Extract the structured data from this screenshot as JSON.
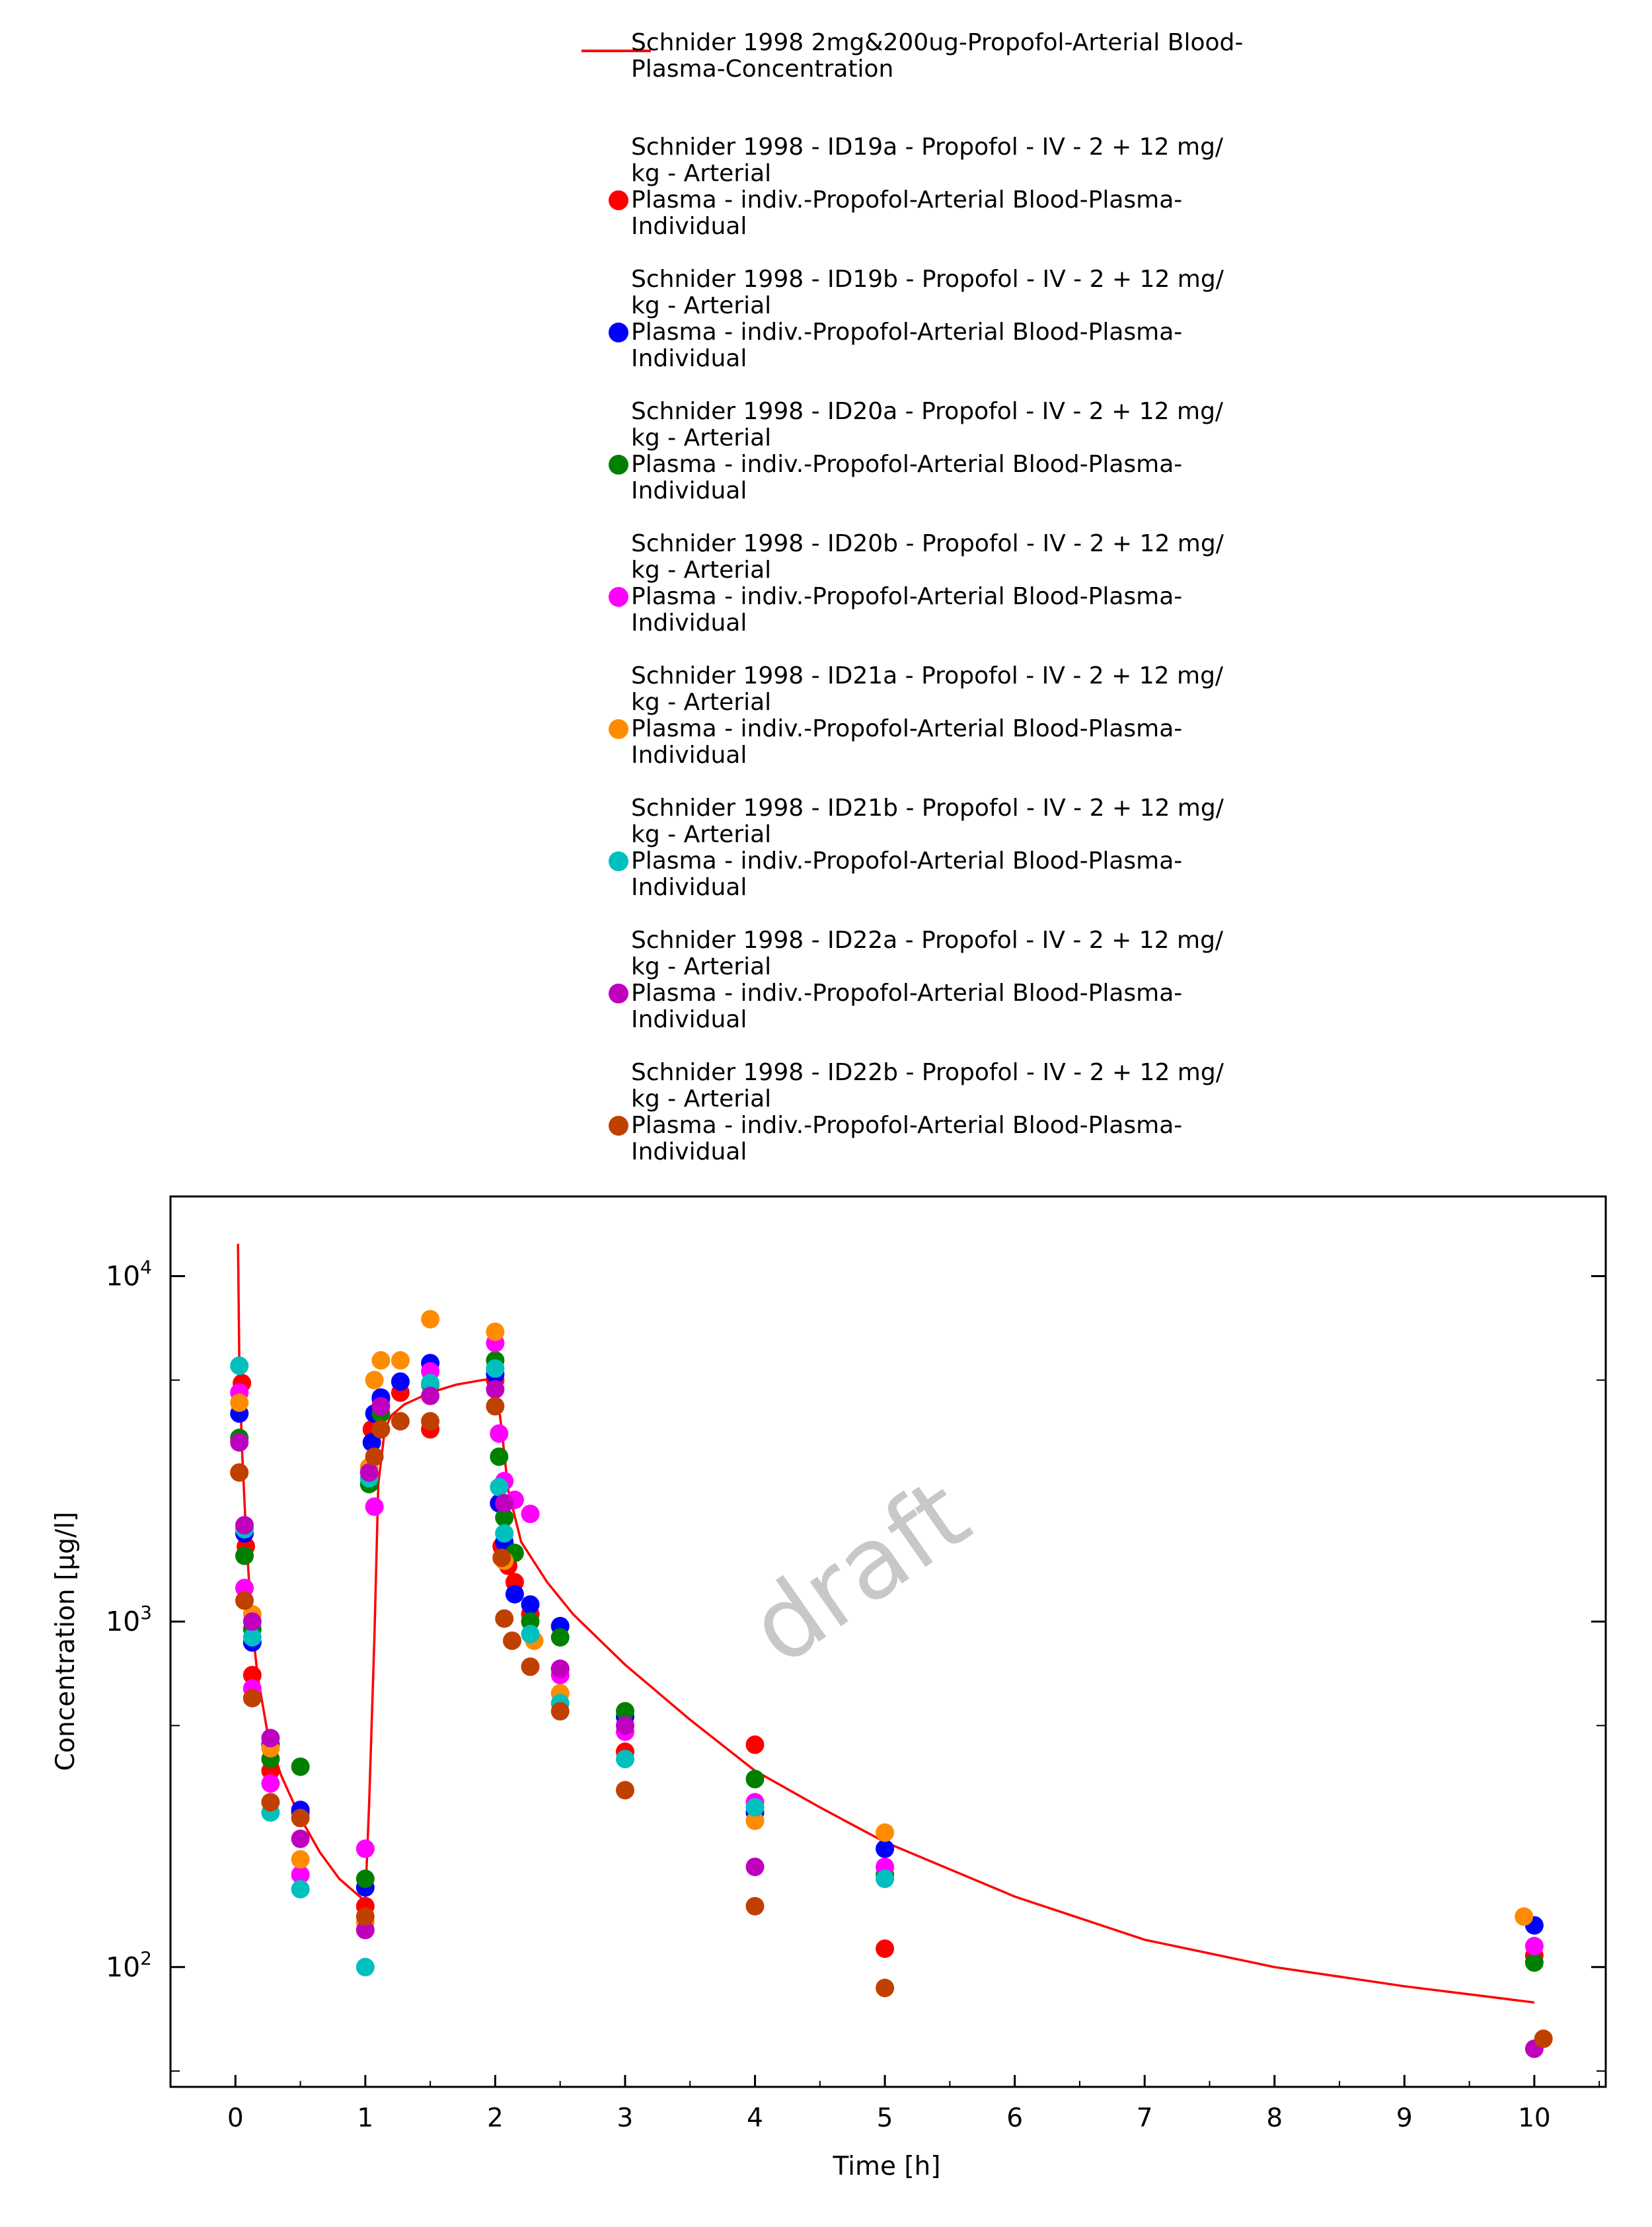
{
  "chart_data": {
    "type": "scatter",
    "xlabel": "Time [h]",
    "ylabel": "Concentration [µg/l]",
    "xlim": [
      -0.5,
      10.55
    ],
    "ylim": [
      45,
      17000
    ],
    "yscale": "log",
    "x_ticks": [
      0,
      1,
      2,
      3,
      4,
      5,
      6,
      7,
      8,
      9,
      10
    ],
    "y_ticks": [
      {
        "value": 100,
        "base": "10",
        "exp": "2"
      },
      {
        "value": 1000,
        "base": "10",
        "exp": "3"
      },
      {
        "value": 10000,
        "base": "10",
        "exp": "4"
      }
    ],
    "legend_position": "top",
    "watermark": "draft",
    "simulation": {
      "name_lines": [
        "Schnider 1998 2mg&200ug-Propofol-Arterial Blood-",
        "Plasma-Concentration"
      ],
      "color": "#ff0000",
      "x": [
        0.02,
        0.03,
        0.05,
        0.08,
        0.12,
        0.17,
        0.25,
        0.35,
        0.5,
        0.65,
        0.8,
        1.0,
        1.03,
        1.07,
        1.1,
        1.15,
        1.2,
        1.3,
        1.5,
        1.7,
        1.9,
        2.0,
        2.05,
        2.1,
        2.2,
        2.4,
        2.6,
        3.0,
        3.5,
        4.0,
        4.5,
        5.0,
        6.0,
        7.0,
        8.0,
        9.0,
        10.0
      ],
      "y": [
        12400,
        5500,
        3200,
        1850,
        1050,
        700,
        470,
        360,
        270,
        215,
        180,
        155,
        300,
        900,
        2500,
        3600,
        3950,
        4250,
        4600,
        4850,
        5000,
        5050,
        3600,
        2400,
        1700,
        1300,
        1050,
        750,
        520,
        370,
        290,
        230,
        160,
        120,
        100,
        88,
        79
      ]
    },
    "series": [
      {
        "name_lines": [
          "Schnider 1998 - ID19a - Propofol - IV - 2 + 12 mg/",
          "kg - Arterial",
          "Plasma - indiv.-Propofol-Arterial Blood-Plasma-",
          "Individual"
        ],
        "color": "#ff0000",
        "x": [
          0.05,
          0.08,
          0.13,
          0.27,
          0.5,
          1.0,
          1.05,
          1.12,
          1.27,
          1.5,
          2.0,
          2.05,
          2.1,
          2.15,
          2.27,
          2.5,
          3.0,
          4.0,
          5.0,
          10.0
        ],
        "y": [
          4900,
          1650,
          700,
          370,
          280,
          150,
          3600,
          4400,
          4600,
          3600,
          5000,
          1650,
          1450,
          1300,
          1050,
          730,
          420,
          440,
          113,
          108
        ]
      },
      {
        "name_lines": [
          "Schnider 1998 - ID19b - Propofol - IV - 2 + 12 mg/",
          "kg - Arterial",
          "Plasma - indiv.-Propofol-Arterial Blood-Plasma-",
          "Individual"
        ],
        "color": "#0000ff",
        "x": [
          0.03,
          0.07,
          0.13,
          0.27,
          0.5,
          1.0,
          1.05,
          1.07,
          1.12,
          1.27,
          1.5,
          2.0,
          2.03,
          2.07,
          2.15,
          2.27,
          2.5,
          3.0,
          4.0,
          5.0,
          10.0
        ],
        "y": [
          4000,
          1800,
          870,
          440,
          285,
          170,
          3300,
          4000,
          4450,
          4950,
          5600,
          5200,
          2200,
          1700,
          1200,
          1120,
          970,
          530,
          280,
          220,
          132
        ]
      },
      {
        "name_lines": [
          "Schnider 1998 - ID20a - Propofol - IV - 2 + 12 mg/",
          "kg - Arterial",
          "Plasma - indiv.-Propofol-Arterial Blood-Plasma-",
          "Individual"
        ],
        "color": "#008000",
        "x": [
          0.03,
          0.07,
          0.13,
          0.27,
          0.5,
          1.0,
          1.03,
          1.12,
          1.5,
          2.0,
          2.03,
          2.07,
          2.15,
          2.27,
          2.5,
          3.0,
          4.0,
          5.0,
          10.0
        ],
        "y": [
          3400,
          1550,
          950,
          400,
          380,
          180,
          2500,
          4000,
          4850,
          5700,
          3000,
          2000,
          1580,
          1000,
          900,
          550,
          350,
          185,
          103
        ]
      },
      {
        "name_lines": [
          "Schnider 1998 - ID20b - Propofol - IV - 2 + 12 mg/",
          "kg - Arterial",
          "Plasma - indiv.-Propofol-Arterial Blood-Plasma-",
          "Individual"
        ],
        "color": "#ff00ff",
        "x": [
          0.03,
          0.07,
          0.13,
          0.27,
          0.5,
          1.0,
          1.07,
          1.5,
          2.0,
          2.03,
          2.07,
          2.15,
          2.27,
          2.5,
          3.0,
          4.0,
          5.0,
          10.0
        ],
        "y": [
          4600,
          1250,
          640,
          340,
          185,
          220,
          2150,
          5300,
          6400,
          3500,
          2550,
          2250,
          2050,
          700,
          480,
          300,
          195,
          115
        ]
      },
      {
        "name_lines": [
          "Schnider 1998 - ID21a - Propofol - IV - 2 + 12 mg/",
          "kg - Arterial",
          "Plasma - indiv.-Propofol-Arterial Blood-Plasma-",
          "Individual"
        ],
        "color": "#ff8c00",
        "x": [
          0.03,
          0.13,
          0.27,
          0.5,
          1.0,
          1.03,
          1.07,
          1.12,
          1.27,
          1.5,
          2.0,
          2.07,
          2.3,
          2.5,
          4.0,
          5.0,
          9.92
        ],
        "y": [
          4300,
          1050,
          430,
          205,
          135,
          2800,
          5000,
          5700,
          5700,
          7500,
          6900,
          1500,
          880,
          620,
          265,
          245,
          140
        ]
      },
      {
        "name_lines": [
          "Schnider 1998 - ID21b - Propofol - IV - 2 + 12 mg/",
          "kg - Arterial",
          "Plasma - indiv.-Propofol-Arterial Blood-Plasma-",
          "Individual"
        ],
        "color": "#00bfbf",
        "x": [
          0.03,
          0.07,
          0.13,
          0.27,
          0.5,
          1.0,
          1.03,
          1.5,
          2.0,
          2.03,
          2.07,
          2.27,
          2.5,
          3.0,
          4.0,
          5.0
        ],
        "y": [
          5500,
          1850,
          900,
          280,
          168,
          100,
          2600,
          4900,
          5400,
          2450,
          1800,
          920,
          580,
          400,
          290,
          180
        ]
      },
      {
        "name_lines": [
          "Schnider 1998 - ID22a - Propofol - IV - 2 + 12 mg/",
          "kg - Arterial",
          "Plasma - indiv.-Propofol-Arterial Blood-Plasma-",
          "Individual"
        ],
        "color": "#bf00bf",
        "x": [
          0.03,
          0.07,
          0.13,
          0.27,
          0.5,
          1.0,
          1.03,
          1.12,
          1.5,
          2.0,
          2.07,
          2.5,
          3.0,
          4.0,
          10.0
        ],
        "y": [
          3300,
          1900,
          1000,
          460,
          235,
          128,
          2700,
          4200,
          4500,
          4700,
          2200,
          730,
          500,
          195,
          58
        ]
      },
      {
        "name_lines": [
          "Schnider 1998 - ID22b - Propofol - IV - 2 + 12 mg/",
          "kg - Arterial",
          "Plasma - indiv.-Propofol-Arterial Blood-Plasma-",
          "Individual"
        ],
        "color": "#c04000",
        "x": [
          0.03,
          0.07,
          0.13,
          0.27,
          0.5,
          1.0,
          1.07,
          1.12,
          1.27,
          1.5,
          2.0,
          2.05,
          2.07,
          2.13,
          2.27,
          2.5,
          3.0,
          4.0,
          5.0,
          10.07
        ],
        "y": [
          2700,
          1150,
          600,
          300,
          270,
          140,
          3000,
          3600,
          3800,
          3800,
          4200,
          1530,
          1020,
          880,
          740,
          550,
          325,
          150,
          87,
          62
        ]
      }
    ]
  }
}
